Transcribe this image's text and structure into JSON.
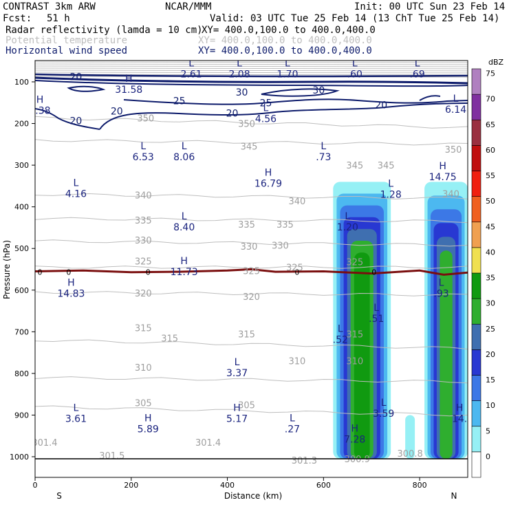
{
  "header": {
    "model": "CONTRAST  3km ARW",
    "org": "NCAR/MMM",
    "init": "Init: 00 UTC Sun 23 Feb 14",
    "fcst_label": "Fcst:",
    "fcst_value": "51 h",
    "valid": "Valid: 03 UTC Tue 25 Feb 14 (13 ChT Tue 25 Feb 14)",
    "fields": [
      {
        "name": "Radar reflectivity (lamda = 10 cm)",
        "xy": "XY= 400.0,100.0 to 400.0,400.0",
        "color": "#000000"
      },
      {
        "name": "Potential temperature",
        "xy": "XY= 400.0,100.0 to 400.0,400.0",
        "color": "#bdbdbd"
      },
      {
        "name": "Horizontal wind speed",
        "xy": "XY= 400.0,100.0 to 400.0,400.0",
        "color": "#0d1b6b"
      }
    ]
  },
  "chart_data": {
    "type": "heatmap",
    "title": "Vertical cross-section",
    "xlabel": "Distance (km)",
    "ylabel": "Pressure (hPa)",
    "xlim": [
      0,
      900
    ],
    "ylim": [
      1050,
      60
    ],
    "x_ticks": [
      0,
      200,
      400,
      600,
      800
    ],
    "y_ticks": [
      100,
      200,
      300,
      400,
      500,
      600,
      700,
      800,
      900,
      1000
    ],
    "x_end_labels": {
      "left": "S",
      "right": "N"
    },
    "colorbar": {
      "unit": "dBZ",
      "levels": [
        0,
        5,
        10,
        15,
        20,
        25,
        30,
        35,
        40,
        45,
        50,
        55,
        60,
        65,
        70,
        75
      ],
      "colors": [
        "#ffffff",
        "#96f0f5",
        "#4cb8f0",
        "#3c78e6",
        "#2838d2",
        "#3f6fb0",
        "#2fae2f",
        "#109a10",
        "#f0e050",
        "#f0a050",
        "#f06020",
        "#f02010",
        "#c01010",
        "#9a3040",
        "#8030a0",
        "#b080c0"
      ]
    },
    "reflectivity_columns": [
      {
        "name": "column-1",
        "x_km": [
          620,
          740
        ],
        "top_hPa": 340,
        "peak_dBZ": 35
      },
      {
        "name": "column-2",
        "x_km": [
          810,
          900
        ],
        "top_hPa": 340,
        "peak_dBZ": 30
      },
      {
        "name": "column-3",
        "x_km": [
          770,
          790
        ],
        "top_hPa": 900,
        "peak_dBZ": 5
      }
    ],
    "freezing_line": {
      "label": "0",
      "x": [
        0,
        100,
        200,
        300,
        400,
        450,
        500,
        600,
        700,
        800,
        850,
        900
      ],
      "p": [
        555,
        553,
        557,
        556,
        553,
        550,
        556,
        555,
        560,
        553,
        563,
        558
      ]
    },
    "theta_contours": [
      {
        "value": 350,
        "x": [
          0,
          900
        ],
        "p": [
          186,
          210
        ]
      },
      {
        "value": 345,
        "x": [
          0,
          900
        ],
        "p": [
          240,
          250
        ]
      },
      {
        "value": 340,
        "x": [
          0,
          900
        ],
        "p": [
          370,
          380
        ]
      },
      {
        "value": 335,
        "x": [
          0,
          900
        ],
        "p": [
          428,
          435
        ]
      },
      {
        "value": 330,
        "x": [
          0,
          900
        ],
        "p": [
          482,
          492
        ]
      },
      {
        "value": 325,
        "x": [
          0,
          900
        ],
        "p": [
          545,
          545
        ]
      },
      {
        "value": 320,
        "x": [
          0,
          900
        ],
        "p": [
          605,
          612
        ]
      },
      {
        "value": 315,
        "x": [
          0,
          900
        ],
        "p": [
          720,
          740
        ]
      },
      {
        "value": 310,
        "x": [
          0,
          900
        ],
        "p": [
          810,
          820
        ]
      },
      {
        "value": 305,
        "x": [
          0,
          900
        ],
        "p": [
          880,
          900
        ]
      }
    ],
    "theta_labels": [
      {
        "text": "350",
        "x": 230,
        "p": 187
      },
      {
        "text": "350",
        "x": 440,
        "p": 200
      },
      {
        "text": "350",
        "x": 870,
        "p": 262
      },
      {
        "text": "345",
        "x": 445,
        "p": 254
      },
      {
        "text": "345",
        "x": 665,
        "p": 300
      },
      {
        "text": "345",
        "x": 730,
        "p": 300
      },
      {
        "text": "340",
        "x": 225,
        "p": 372
      },
      {
        "text": "340",
        "x": 545,
        "p": 386
      },
      {
        "text": "340",
        "x": 865,
        "p": 368
      },
      {
        "text": "335",
        "x": 225,
        "p": 432
      },
      {
        "text": "335",
        "x": 440,
        "p": 442
      },
      {
        "text": "335",
        "x": 520,
        "p": 442
      },
      {
        "text": "330",
        "x": 225,
        "p": 480
      },
      {
        "text": "330",
        "x": 445,
        "p": 495
      },
      {
        "text": "330",
        "x": 510,
        "p": 492
      },
      {
        "text": "325",
        "x": 225,
        "p": 530
      },
      {
        "text": "325",
        "x": 450,
        "p": 553
      },
      {
        "text": "325",
        "x": 540,
        "p": 545
      },
      {
        "text": "325",
        "x": 665,
        "p": 532
      },
      {
        "text": "320",
        "x": 225,
        "p": 607
      },
      {
        "text": "320",
        "x": 450,
        "p": 615
      },
      {
        "text": "315",
        "x": 225,
        "p": 690
      },
      {
        "text": "315",
        "x": 280,
        "p": 715
      },
      {
        "text": "315",
        "x": 440,
        "p": 705
      },
      {
        "text": "315",
        "x": 665,
        "p": 705
      },
      {
        "text": "310",
        "x": 225,
        "p": 785
      },
      {
        "text": "310",
        "x": 545,
        "p": 770
      },
      {
        "text": "310",
        "x": 665,
        "p": 770
      },
      {
        "text": "305",
        "x": 225,
        "p": 870
      },
      {
        "text": "305",
        "x": 440,
        "p": 875
      },
      {
        "text": "301.4",
        "x": 20,
        "p": 965
      },
      {
        "text": "301.5",
        "x": 160,
        "p": 997
      },
      {
        "text": "301.4",
        "x": 360,
        "p": 965
      },
      {
        "text": "301.3",
        "x": 560,
        "p": 1008
      },
      {
        "text": "300.9",
        "x": 670,
        "p": 1005
      },
      {
        "text": "300.8",
        "x": 780,
        "p": 992
      }
    ],
    "wind_labels": [
      {
        "text": "20",
        "x": 85,
        "p": 88
      },
      {
        "text": "20",
        "x": 85,
        "p": 193
      },
      {
        "text": "20",
        "x": 170,
        "p": 170
      },
      {
        "text": "20",
        "x": 410,
        "p": 175
      },
      {
        "text": "20",
        "x": 720,
        "p": 155
      },
      {
        "text": "25",
        "x": 300,
        "p": 145
      },
      {
        "text": "25",
        "x": 480,
        "p": 150
      },
      {
        "text": "30",
        "x": 430,
        "p": 125
      },
      {
        "text": "30",
        "x": 590,
        "p": 120
      }
    ],
    "annotations": [
      {
        "mark": "H",
        "value": "31.58",
        "x": 195,
        "p": 100
      },
      {
        "mark": "H",
        "value": "8.38",
        "x": 10,
        "p": 150
      },
      {
        "mark": "L",
        "value": "2.61",
        "x": 325,
        "p": 63
      },
      {
        "mark": "L",
        "value": "2.08",
        "x": 425,
        "p": 63
      },
      {
        "mark": "L",
        "value": "1.70",
        "x": 525,
        "p": 63
      },
      {
        "mark": "L",
        "value": ".60",
        "x": 665,
        "p": 63
      },
      {
        "mark": "L",
        "value": ".69",
        "x": 795,
        "p": 63
      },
      {
        "mark": "L",
        "value": "6.14",
        "x": 875,
        "p": 148
      },
      {
        "mark": "L",
        "value": "4.56",
        "x": 480,
        "p": 170
      },
      {
        "mark": "L",
        "value": "6.53",
        "x": 225,
        "p": 262
      },
      {
        "mark": "L",
        "value": "8.06",
        "x": 310,
        "p": 262
      },
      {
        "mark": "L",
        "value": ".73",
        "x": 600,
        "p": 262
      },
      {
        "mark": "H",
        "value": "16.79",
        "x": 485,
        "p": 325
      },
      {
        "mark": "H",
        "value": "14.75",
        "x": 848,
        "p": 310
      },
      {
        "mark": "L",
        "value": "4.16",
        "x": 85,
        "p": 350
      },
      {
        "mark": "L",
        "value": "1.28",
        "x": 740,
        "p": 352
      },
      {
        "mark": "L",
        "value": "8.40",
        "x": 310,
        "p": 430
      },
      {
        "mark": "L",
        "value": "1.20",
        "x": 650,
        "p": 430
      },
      {
        "mark": "H",
        "value": "11.73",
        "x": 310,
        "p": 538
      },
      {
        "mark": "H",
        "value": "14.83",
        "x": 75,
        "p": 590
      },
      {
        "mark": "L",
        "value": ".93",
        "x": 845,
        "p": 590
      },
      {
        "mark": "L",
        "value": ".51",
        "x": 710,
        "p": 650
      },
      {
        "mark": "L",
        "value": ".52",
        "x": 635,
        "p": 700
      },
      {
        "mark": "L",
        "value": "3.37",
        "x": 420,
        "p": 780
      },
      {
        "mark": "L",
        "value": "3.61",
        "x": 85,
        "p": 890
      },
      {
        "mark": "H",
        "value": "5.89",
        "x": 235,
        "p": 915
      },
      {
        "mark": "H",
        "value": "5.17",
        "x": 420,
        "p": 890
      },
      {
        "mark": "L",
        "value": ".27",
        "x": 535,
        "p": 915
      },
      {
        "mark": "L",
        "value": "3.59",
        "x": 725,
        "p": 878
      },
      {
        "mark": "H",
        "value": "14.",
        "x": 883,
        "p": 890
      },
      {
        "mark": "H",
        "value": "7.28",
        "x": 665,
        "p": 940
      }
    ]
  }
}
